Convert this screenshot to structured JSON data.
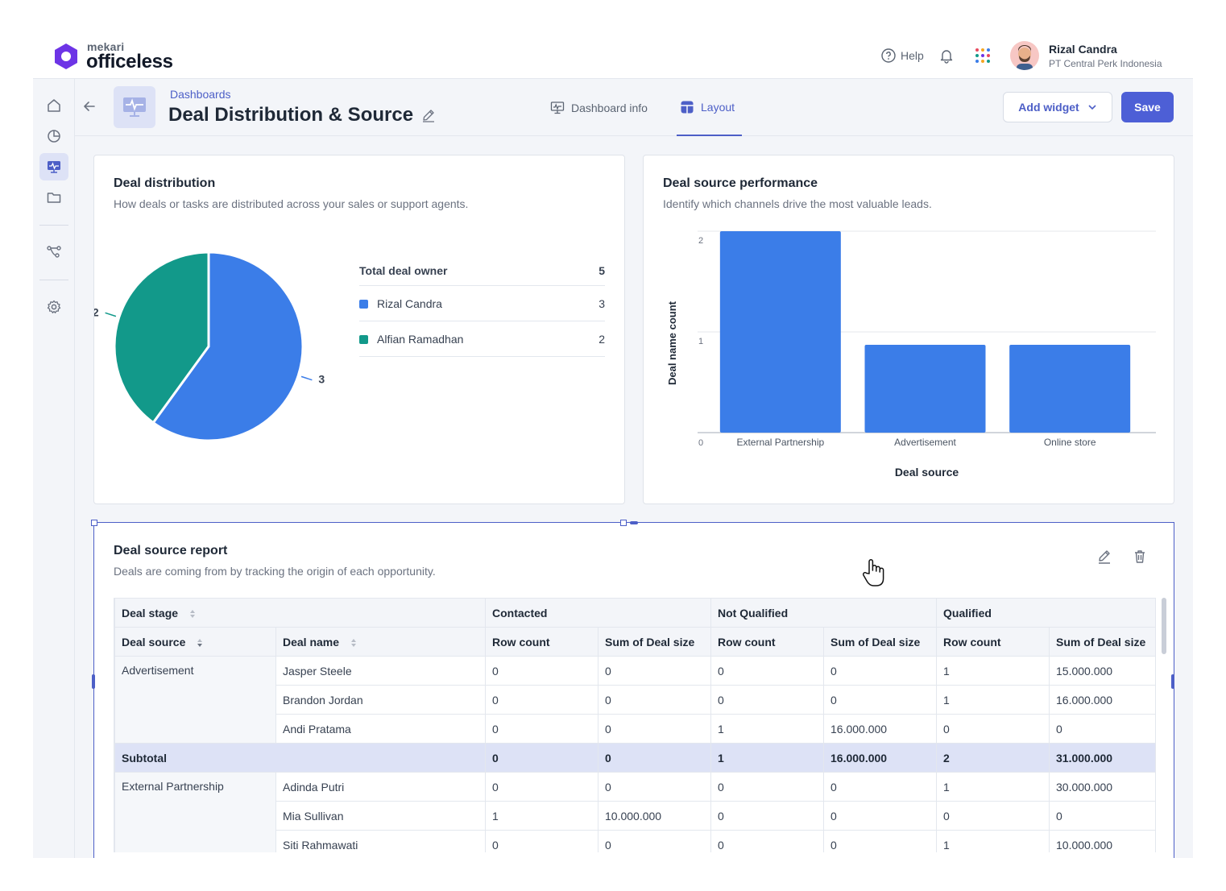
{
  "brand": {
    "small": "mekari",
    "big": "officeless"
  },
  "topbar": {
    "help_label": "Help",
    "user_name": "Rizal Candra",
    "user_company": "PT Central Perk Indonesia"
  },
  "header": {
    "breadcrumb": "Dashboards",
    "title": "Deal Distribution & Source",
    "tabs": [
      {
        "label": "Dashboard info"
      },
      {
        "label": "Layout"
      }
    ],
    "add_widget_label": "Add widget",
    "save_label": "Save"
  },
  "distribution": {
    "title": "Deal distribution",
    "subtitle": "How deals or tasks are distributed across your sales or support agents.",
    "legend_header": "Total deal owner",
    "legend_total": "5",
    "chart_data": {
      "type": "pie",
      "categories": [
        "Rizal Candra",
        "Alfian Ramadhan"
      ],
      "values": [
        3,
        2
      ],
      "colors": [
        "#3b7de8",
        "#12998a"
      ]
    }
  },
  "source_perf": {
    "title": "Deal source performance",
    "subtitle": "Identify which channels drive the most valuable leads.",
    "chart_data": {
      "type": "bar",
      "categories": [
        "External Partnership",
        "Advertisement",
        "Online store"
      ],
      "values": [
        2,
        1,
        1
      ],
      "xlabel": "Deal source",
      "ylabel": "Deal name count",
      "ylim": [
        0,
        2
      ],
      "yticks": [
        "0",
        "1",
        "2"
      ],
      "color": "#3b7de8",
      "grid": true
    }
  },
  "report": {
    "title": "Deal source report",
    "subtitle": "Deals are coming from by tracking the origin of each opportunity.",
    "headers": {
      "deal_stage": "Deal stage",
      "deal_source": "Deal source",
      "deal_name": "Deal name",
      "stages": [
        "Contacted",
        "Not Qualified",
        "Qualified"
      ],
      "row_count": "Row count",
      "sum_deal_size": "Sum of Deal size"
    },
    "rows": [
      {
        "source": "Advertisement",
        "name": "Jasper Steele",
        "values": [
          "0",
          "0",
          "0",
          "0",
          "1",
          "15.000.000"
        ]
      },
      {
        "source": "",
        "name": "Brandon Jordan",
        "values": [
          "0",
          "0",
          "0",
          "0",
          "1",
          "16.000.000"
        ]
      },
      {
        "source": "",
        "name": "Andi Pratama",
        "values": [
          "0",
          "0",
          "1",
          "16.000.000",
          "0",
          "0"
        ]
      },
      {
        "subtotal_label": "Subtotal",
        "values": [
          "0",
          "0",
          "1",
          "16.000.000",
          "2",
          "31.000.000"
        ]
      },
      {
        "source": "External Partnership",
        "name": "Adinda Putri",
        "values": [
          "0",
          "0",
          "0",
          "0",
          "1",
          "30.000.000"
        ]
      },
      {
        "source": "",
        "name": "Mia Sullivan",
        "values": [
          "1",
          "10.000.000",
          "0",
          "0",
          "0",
          "0"
        ]
      },
      {
        "source": "",
        "name": "Siti Rahmawati",
        "values": [
          "0",
          "0",
          "0",
          "0",
          "1",
          "10.000.000"
        ]
      }
    ]
  }
}
